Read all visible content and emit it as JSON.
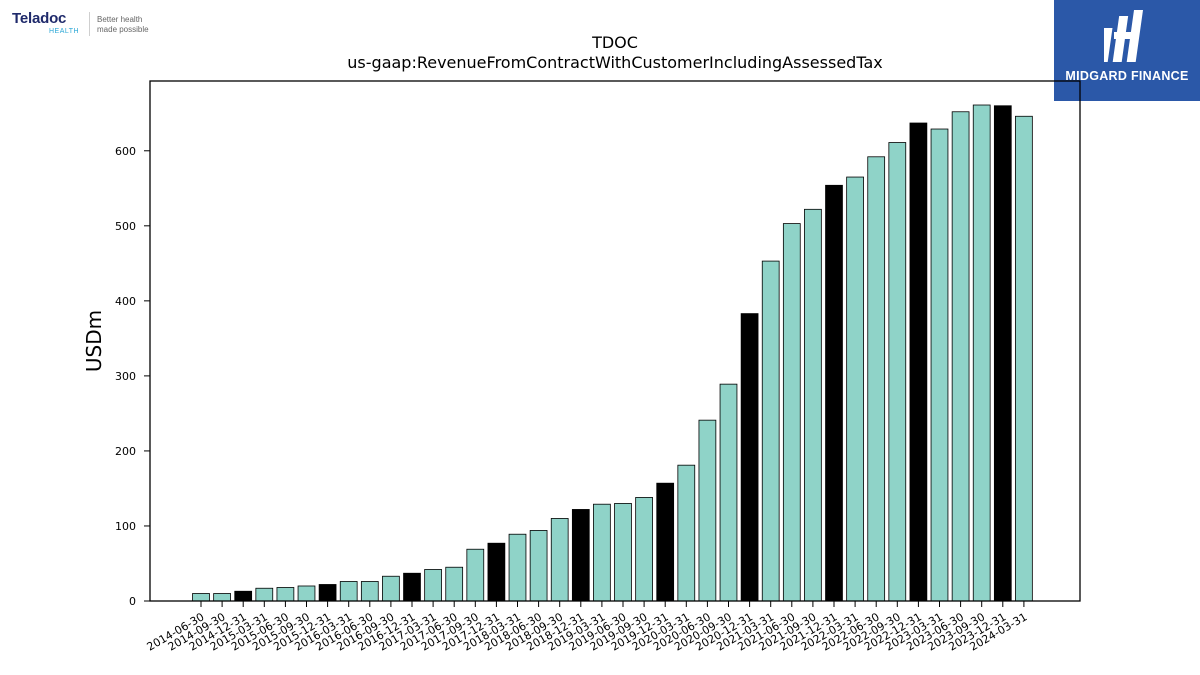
{
  "brand": {
    "name": "Teladoc",
    "sub": "HEALTH",
    "tagline_line1": "Better health",
    "tagline_line2": "made possible"
  },
  "publisher": {
    "name": "MIDGARD FINANCE",
    "color": "#2b58a8"
  },
  "chart_data": {
    "type": "bar",
    "title": "TDOC",
    "subtitle": "us-gaap:RevenueFromContractWithCustomerIncludingAssessedTax",
    "xlabel": "",
    "ylabel": "USDm",
    "ylim": [
      0,
      693
    ],
    "yticks": [
      0,
      100,
      200,
      300,
      400,
      500,
      600
    ],
    "grid": false,
    "colors": {
      "quarter": "#8fd3c8",
      "year_end": "#000000",
      "edge": "#000000"
    },
    "categories": [
      "2014-06-30",
      "2014-09-30",
      "2014-12-31",
      "2015-03-31",
      "2015-06-30",
      "2015-09-30",
      "2015-12-31",
      "2016-03-31",
      "2016-06-30",
      "2016-09-30",
      "2016-12-31",
      "2017-03-31",
      "2017-06-30",
      "2017-09-30",
      "2017-12-31",
      "2018-03-31",
      "2018-06-30",
      "2018-09-30",
      "2018-12-31",
      "2019-03-31",
      "2019-06-30",
      "2019-09-30",
      "2019-12-31",
      "2020-03-31",
      "2020-06-30",
      "2020-09-30",
      "2020-12-31",
      "2021-03-31",
      "2021-06-30",
      "2021-09-30",
      "2021-12-31",
      "2022-03-31",
      "2022-06-30",
      "2022-09-30",
      "2022-12-31",
      "2023-03-31",
      "2023-06-30",
      "2023-09-30",
      "2023-12-31",
      "2024-03-31"
    ],
    "values": [
      10,
      10,
      13,
      17,
      18,
      20,
      22,
      26,
      26,
      33,
      37,
      42,
      45,
      69,
      77,
      89,
      94,
      110,
      122,
      129,
      130,
      138,
      157,
      181,
      241,
      289,
      383,
      453,
      503,
      522,
      554,
      565,
      592,
      611,
      637,
      629,
      652,
      661,
      660,
      646
    ],
    "highlight": [
      false,
      false,
      true,
      false,
      false,
      false,
      true,
      false,
      false,
      false,
      true,
      false,
      false,
      false,
      true,
      false,
      false,
      false,
      true,
      false,
      false,
      false,
      true,
      false,
      false,
      false,
      true,
      false,
      false,
      false,
      true,
      false,
      false,
      false,
      true,
      false,
      false,
      false,
      true,
      false
    ]
  }
}
